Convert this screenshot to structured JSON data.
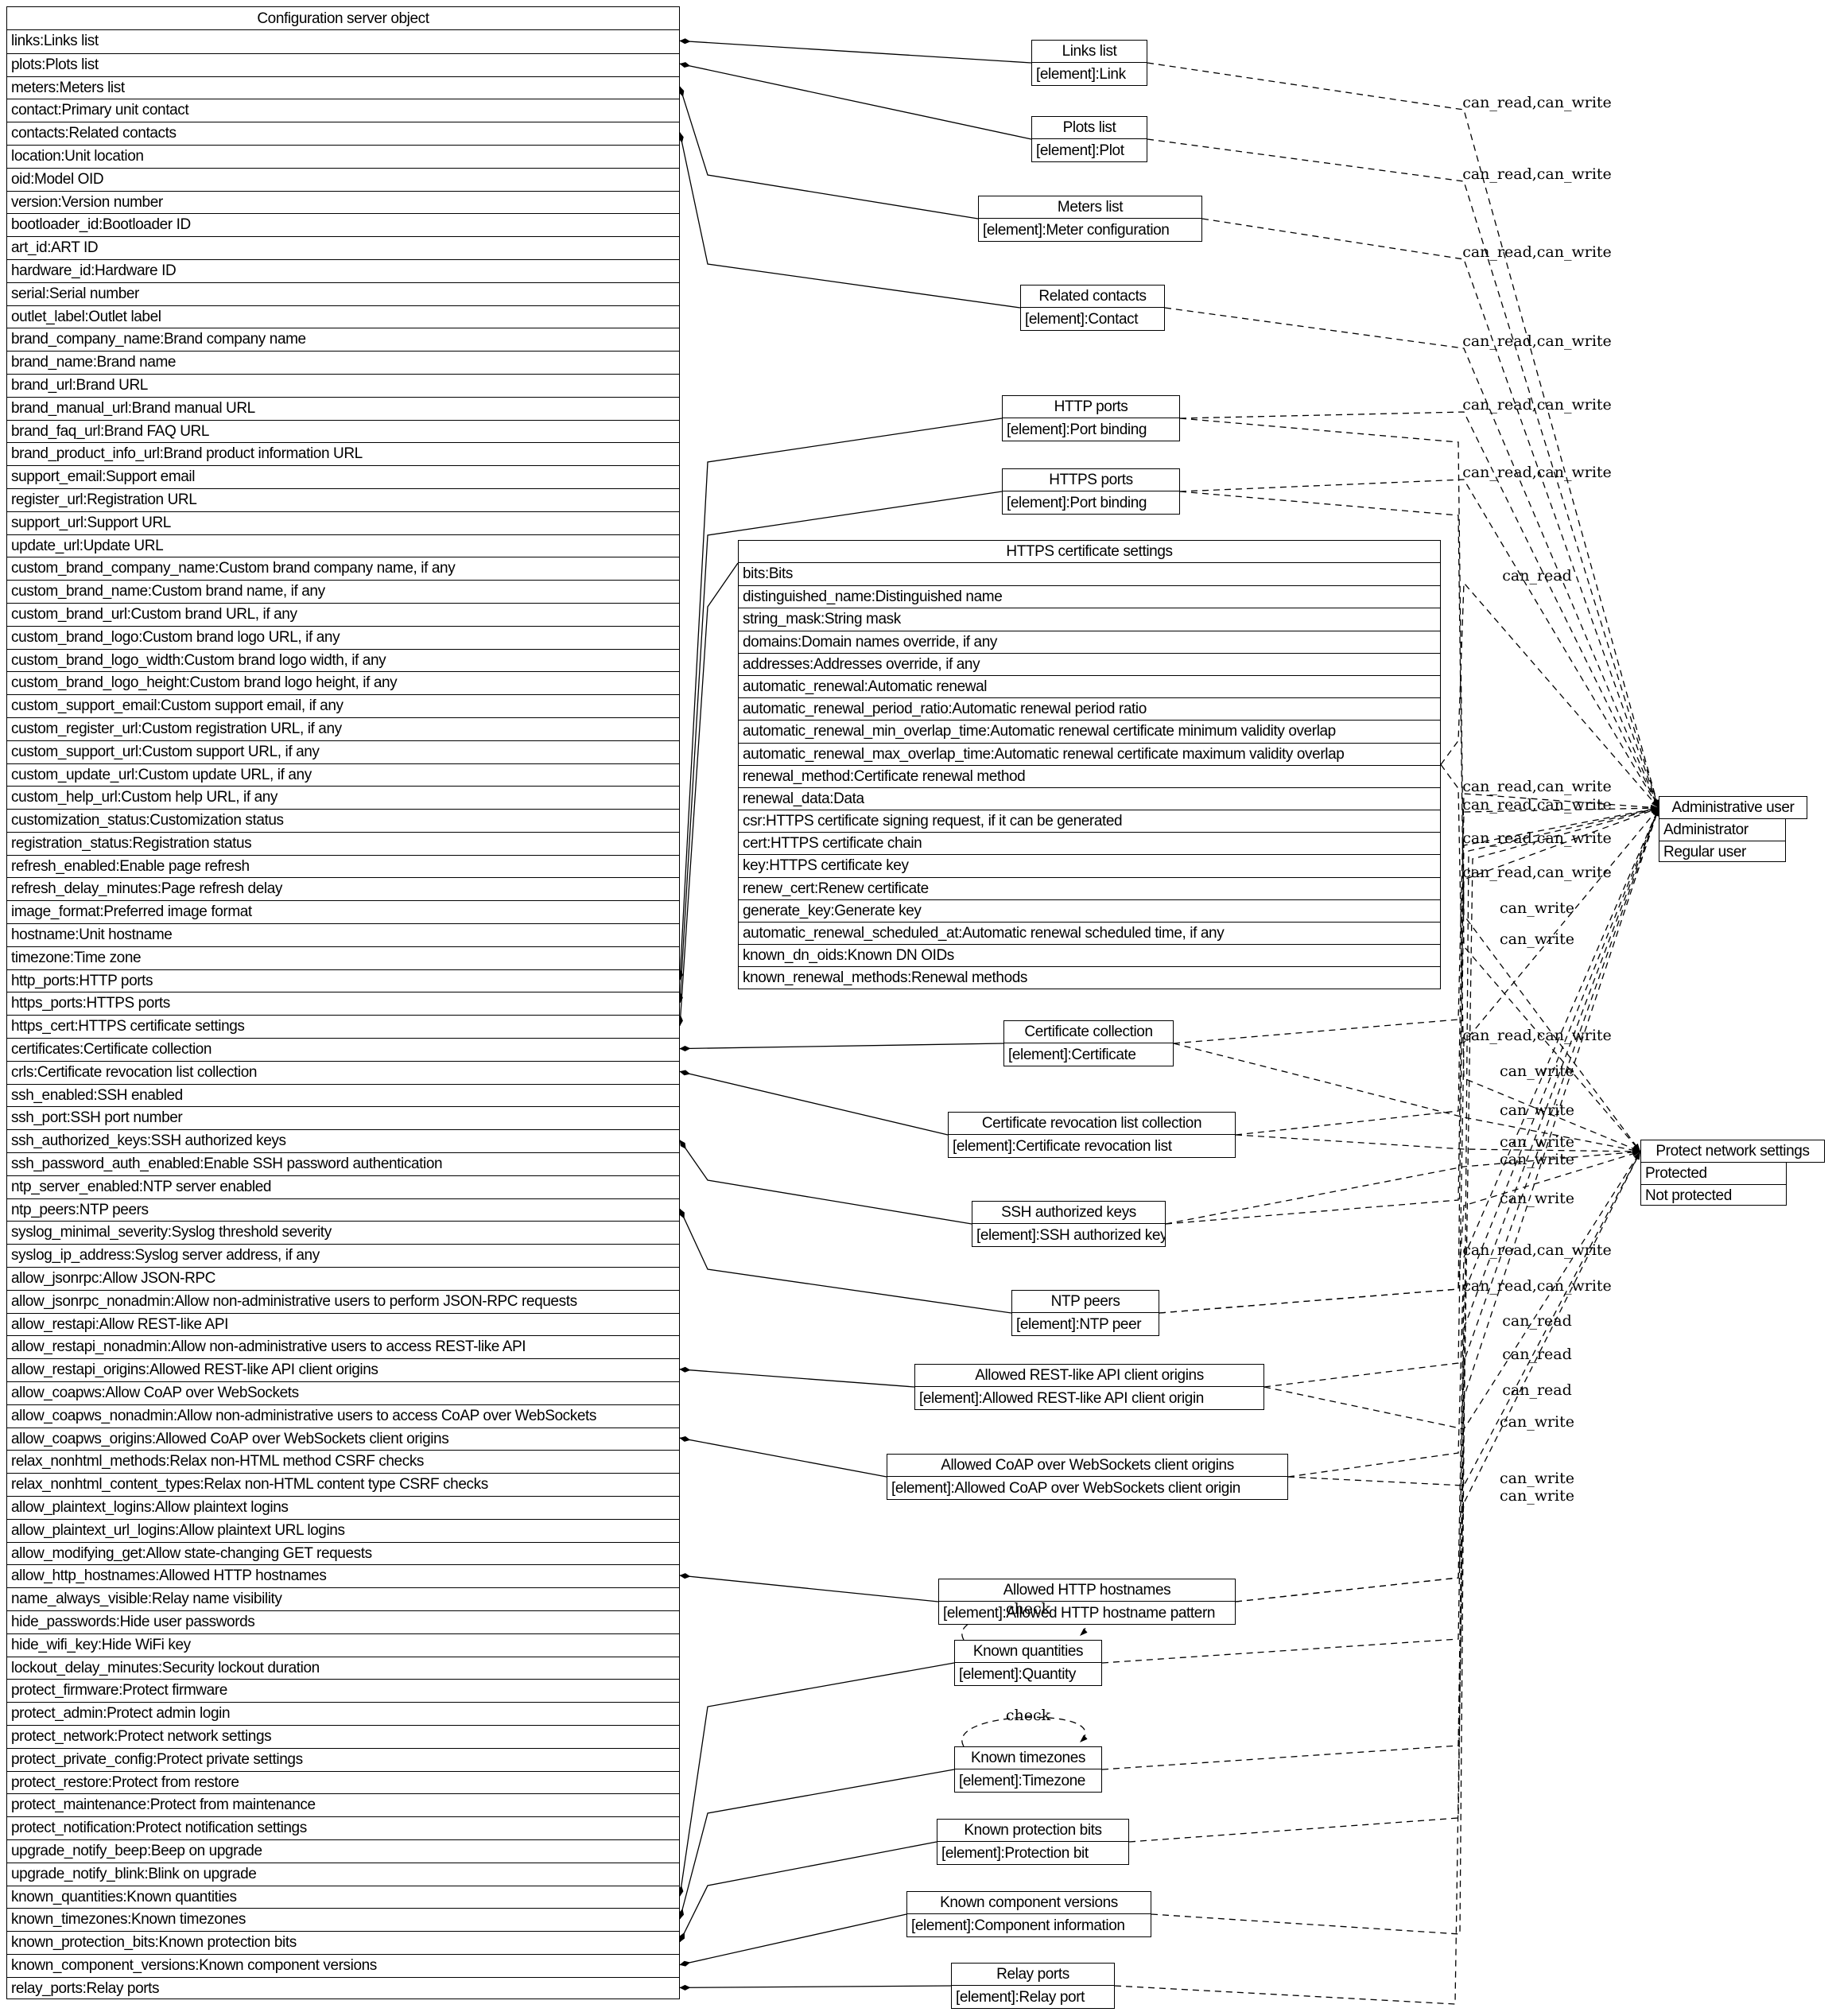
{
  "diagram": {
    "main_table": {
      "title": "Configuration server object",
      "rows": [
        "links:Links list",
        "plots:Plots list",
        "meters:Meters list",
        "contact:Primary unit contact",
        "contacts:Related contacts",
        "location:Unit location",
        "oid:Model OID",
        "version:Version number",
        "bootloader_id:Bootloader ID",
        "art_id:ART ID",
        "hardware_id:Hardware ID",
        "serial:Serial number",
        "outlet_label:Outlet label",
        "brand_company_name:Brand company name",
        "brand_name:Brand name",
        "brand_url:Brand URL",
        "brand_manual_url:Brand manual URL",
        "brand_faq_url:Brand FAQ URL",
        "brand_product_info_url:Brand product information URL",
        "support_email:Support email",
        "register_url:Registration URL",
        "support_url:Support URL",
        "update_url:Update URL",
        "custom_brand_company_name:Custom brand company name, if any",
        "custom_brand_name:Custom brand name, if any",
        "custom_brand_url:Custom brand URL, if any",
        "custom_brand_logo:Custom brand logo URL, if any",
        "custom_brand_logo_width:Custom brand logo width, if any",
        "custom_brand_logo_height:Custom brand logo height, if any",
        "custom_support_email:Custom support email, if any",
        "custom_register_url:Custom registration URL, if any",
        "custom_support_url:Custom support URL, if any",
        "custom_update_url:Custom update URL, if any",
        "custom_help_url:Custom help URL, if any",
        "customization_status:Customization status",
        "registration_status:Registration status",
        "refresh_enabled:Enable page refresh",
        "refresh_delay_minutes:Page refresh delay",
        "image_format:Preferred image format",
        "hostname:Unit hostname",
        "timezone:Time zone",
        "http_ports:HTTP ports",
        "https_ports:HTTPS ports",
        "https_cert:HTTPS certificate settings",
        "certificates:Certificate collection",
        "crls:Certificate revocation list collection",
        "ssh_enabled:SSH enabled",
        "ssh_port:SSH port number",
        "ssh_authorized_keys:SSH authorized keys",
        "ssh_password_auth_enabled:Enable SSH password authentication",
        "ntp_server_enabled:NTP server enabled",
        "ntp_peers:NTP peers",
        "syslog_minimal_severity:Syslog threshold severity",
        "syslog_ip_address:Syslog server address, if any",
        "allow_jsonrpc:Allow JSON-RPC",
        "allow_jsonrpc_nonadmin:Allow non-administrative users to perform JSON-RPC requests",
        "allow_restapi:Allow REST-like API",
        "allow_restapi_nonadmin:Allow non-administrative users to access REST-like API",
        "allow_restapi_origins:Allowed REST-like API client origins",
        "allow_coapws:Allow CoAP over WebSockets",
        "allow_coapws_nonadmin:Allow non-administrative users to access CoAP over WebSockets",
        "allow_coapws_origins:Allowed CoAP over WebSockets client origins",
        "relax_nonhtml_methods:Relax non-HTML method CSRF checks",
        "relax_nonhtml_content_types:Relax non-HTML content type CSRF checks",
        "allow_plaintext_logins:Allow plaintext logins",
        "allow_plaintext_url_logins:Allow plaintext URL logins",
        "allow_modifying_get:Allow state-changing GET requests",
        "allow_http_hostnames:Allowed HTTP hostnames",
        "name_always_visible:Relay name visibility",
        "hide_passwords:Hide user passwords",
        "hide_wifi_key:Hide WiFi key",
        "lockout_delay_minutes:Security lockout duration",
        "protect_firmware:Protect firmware",
        "protect_admin:Protect admin login",
        "protect_network:Protect network settings",
        "protect_private_config:Protect private settings",
        "protect_restore:Protect from restore",
        "protect_maintenance:Protect from maintenance",
        "protect_notification:Protect notification settings",
        "upgrade_notify_beep:Beep on upgrade",
        "upgrade_notify_blink:Blink on upgrade",
        "known_quantities:Known quantities",
        "known_timezones:Known timezones",
        "known_protection_bits:Known protection bits",
        "known_component_versions:Known component versions",
        "relay_ports:Relay ports"
      ]
    },
    "boxes": [
      {
        "id": "links-list",
        "title": "Links list",
        "rows": [
          "[element]:Link"
        ]
      },
      {
        "id": "plots-list",
        "title": "Plots list",
        "rows": [
          "[element]:Plot"
        ]
      },
      {
        "id": "meters-list",
        "title": "Meters list",
        "rows": [
          "[element]:Meter configuration"
        ]
      },
      {
        "id": "related-contacts",
        "title": "Related contacts",
        "rows": [
          "[element]:Contact"
        ]
      },
      {
        "id": "http-ports",
        "title": "HTTP ports",
        "rows": [
          "[element]:Port binding"
        ]
      },
      {
        "id": "https-ports",
        "title": "HTTPS ports",
        "rows": [
          "[element]:Port binding"
        ]
      },
      {
        "id": "https-cert",
        "title": "HTTPS certificate settings",
        "rows": [
          "bits:Bits",
          "distinguished_name:Distinguished name",
          "string_mask:String mask",
          "domains:Domain names override, if any",
          "addresses:Addresses override, if any",
          "automatic_renewal:Automatic renewal",
          "automatic_renewal_period_ratio:Automatic renewal period ratio",
          "automatic_renewal_min_overlap_time:Automatic renewal certificate minimum validity overlap",
          "automatic_renewal_max_overlap_time:Automatic renewal certificate maximum validity overlap",
          "renewal_method:Certificate renewal method",
          "renewal_data:Data",
          "csr:HTTPS certificate signing request, if it can be generated",
          "cert:HTTPS certificate chain",
          "key:HTTPS certificate key",
          "renew_cert:Renew certificate",
          "generate_key:Generate key",
          "automatic_renewal_scheduled_at:Automatic renewal scheduled time, if any",
          "known_dn_oids:Known DN OIDs",
          "known_renewal_methods:Renewal methods"
        ]
      },
      {
        "id": "certificate-collection",
        "title": "Certificate collection",
        "rows": [
          "[element]:Certificate"
        ]
      },
      {
        "id": "crl-collection",
        "title": "Certificate revocation list collection",
        "rows": [
          "[element]:Certificate revocation list"
        ]
      },
      {
        "id": "ssh-authorized-keys",
        "title": "SSH authorized keys",
        "rows": [
          "[element]:SSH authorized key"
        ]
      },
      {
        "id": "ntp-peers",
        "title": "NTP peers",
        "rows": [
          "[element]:NTP peer"
        ]
      },
      {
        "id": "allowed-restapi-origins",
        "title": "Allowed REST-like API client origins",
        "rows": [
          "[element]:Allowed REST-like API client origin"
        ]
      },
      {
        "id": "allowed-coapws-origins",
        "title": "Allowed CoAP over WebSockets client origins",
        "rows": [
          "[element]:Allowed CoAP over WebSockets client origin"
        ]
      },
      {
        "id": "allowed-http-hostnames",
        "title": "Allowed HTTP hostnames",
        "rows": [
          "[element]:Allowed HTTP hostname pattern"
        ]
      },
      {
        "id": "known-quantities",
        "title": "Known quantities",
        "rows": [
          "[element]:Quantity"
        ]
      },
      {
        "id": "known-timezones",
        "title": "Known timezones",
        "rows": [
          "[element]:Timezone"
        ]
      },
      {
        "id": "known-protection-bits",
        "title": "Known protection bits",
        "rows": [
          "[element]:Protection bit"
        ]
      },
      {
        "id": "known-component-versions",
        "title": "Known component versions",
        "rows": [
          "[element]:Component information"
        ]
      },
      {
        "id": "relay-ports",
        "title": "Relay ports",
        "rows": [
          "[element]:Relay port"
        ]
      },
      {
        "id": "administrative-user",
        "title": "Administrative user",
        "rows": [
          "Administrator",
          "Regular user"
        ]
      },
      {
        "id": "protect-network-settings",
        "title": "Protect network settings",
        "rows": [
          "Protected",
          "Not protected"
        ]
      }
    ],
    "composition_edges": [
      {
        "from_field": "links",
        "row_index": 0,
        "to": "links-list"
      },
      {
        "from_field": "plots",
        "row_index": 1,
        "to": "plots-list"
      },
      {
        "from_field": "meters",
        "row_index": 2,
        "to": "meters-list"
      },
      {
        "from_field": "contacts",
        "row_index": 4,
        "to": "related-contacts"
      },
      {
        "from_field": "http_ports",
        "row_index": 41,
        "to": "http-ports"
      },
      {
        "from_field": "https_ports",
        "row_index": 42,
        "to": "https-ports"
      },
      {
        "from_field": "https_cert",
        "row_index": 43,
        "to": "https-cert"
      },
      {
        "from_field": "certificates",
        "row_index": 44,
        "to": "certificate-collection"
      },
      {
        "from_field": "crls",
        "row_index": 45,
        "to": "crl-collection"
      },
      {
        "from_field": "ssh_authorized_keys",
        "row_index": 48,
        "to": "ssh-authorized-keys"
      },
      {
        "from_field": "ntp_peers",
        "row_index": 51,
        "to": "ntp-peers"
      },
      {
        "from_field": "allow_restapi_origins",
        "row_index": 58,
        "to": "allowed-restapi-origins"
      },
      {
        "from_field": "allow_coapws_origins",
        "row_index": 61,
        "to": "allowed-coapws-origins"
      },
      {
        "from_field": "allow_http_hostnames",
        "row_index": 67,
        "to": "allowed-http-hostnames"
      },
      {
        "from_field": "known_quantities",
        "row_index": 81,
        "to": "known-quantities"
      },
      {
        "from_field": "known_timezones",
        "row_index": 82,
        "to": "known-timezones"
      },
      {
        "from_field": "known_protection_bits",
        "row_index": 83,
        "to": "known-protection-bits"
      },
      {
        "from_field": "known_component_versions",
        "row_index": 84,
        "to": "known-component-versions"
      },
      {
        "from_field": "relay_ports",
        "row_index": 85,
        "to": "relay-ports"
      }
    ],
    "access_edges": [
      {
        "from": "links-list",
        "to": "administrative-user",
        "label": "can_read,can_write"
      },
      {
        "from": "plots-list",
        "to": "administrative-user",
        "label": "can_read,can_write"
      },
      {
        "from": "meters-list",
        "to": "administrative-user",
        "label": "can_read,can_write"
      },
      {
        "from": "related-contacts",
        "to": "administrative-user",
        "label": "can_read,can_write"
      },
      {
        "from": "http-ports",
        "to": "administrative-user",
        "label": "can_read,can_write"
      },
      {
        "from": "https-ports",
        "to": "administrative-user",
        "label": "can_read,can_write"
      },
      {
        "from": "https-cert",
        "to": "administrative-user",
        "label": "can_read"
      },
      {
        "from": "certificate-collection",
        "to": "administrative-user",
        "label": "can_read,can_write"
      },
      {
        "from": "crl-collection",
        "to": "administrative-user",
        "label": "can_read,can_write"
      },
      {
        "from": "ssh-authorized-keys",
        "to": "administrative-user",
        "label": "can_read,can_write"
      },
      {
        "from": "ntp-peers",
        "to": "administrative-user",
        "label": "can_read,can_write"
      },
      {
        "from": "http-ports",
        "to": "protect-network-settings",
        "label": "can_write"
      },
      {
        "from": "https-ports",
        "to": "protect-network-settings",
        "label": "can_write"
      },
      {
        "from": "allowed-restapi-origins",
        "to": "administrative-user",
        "label": "can_read,can_write"
      },
      {
        "from": "https-cert",
        "to": "protect-network-settings",
        "label": "can_write"
      },
      {
        "from": "certificate-collection",
        "to": "protect-network-settings",
        "label": "can_write"
      },
      {
        "from": "crl-collection",
        "to": "protect-network-settings",
        "label": "can_write"
      },
      {
        "from": "ssh-authorized-keys",
        "to": "protect-network-settings",
        "label": "can_write"
      },
      {
        "from": "ntp-peers",
        "to": "protect-network-settings",
        "label": "can_write"
      },
      {
        "from": "allowed-coapws-origins",
        "to": "administrative-user",
        "label": "can_read,can_write"
      },
      {
        "from": "allowed-http-hostnames",
        "to": "administrative-user",
        "label": "can_read,can_write"
      },
      {
        "from": "known-quantities",
        "to": "administrative-user",
        "label": "can_read"
      },
      {
        "from": "known-timezones",
        "to": "administrative-user",
        "label": "can_read"
      },
      {
        "from": "known-protection-bits",
        "to": "administrative-user",
        "label": "can_read"
      },
      {
        "from": "allowed-restapi-origins",
        "to": "protect-network-settings",
        "label": "can_write"
      },
      {
        "from": "allowed-coapws-origins",
        "to": "protect-network-settings",
        "label": "can_write"
      },
      {
        "from": "allowed-http-hostnames",
        "to": "protect-network-settings",
        "label": "can_write"
      },
      {
        "from": "known-component-versions",
        "to": "administrative-user",
        "label": ""
      },
      {
        "from": "relay-ports",
        "to": "administrative-user",
        "label": ""
      }
    ],
    "self_loops": [
      {
        "on": "known-quantities",
        "label": "check"
      },
      {
        "on": "known-timezones",
        "label": "check"
      }
    ]
  }
}
